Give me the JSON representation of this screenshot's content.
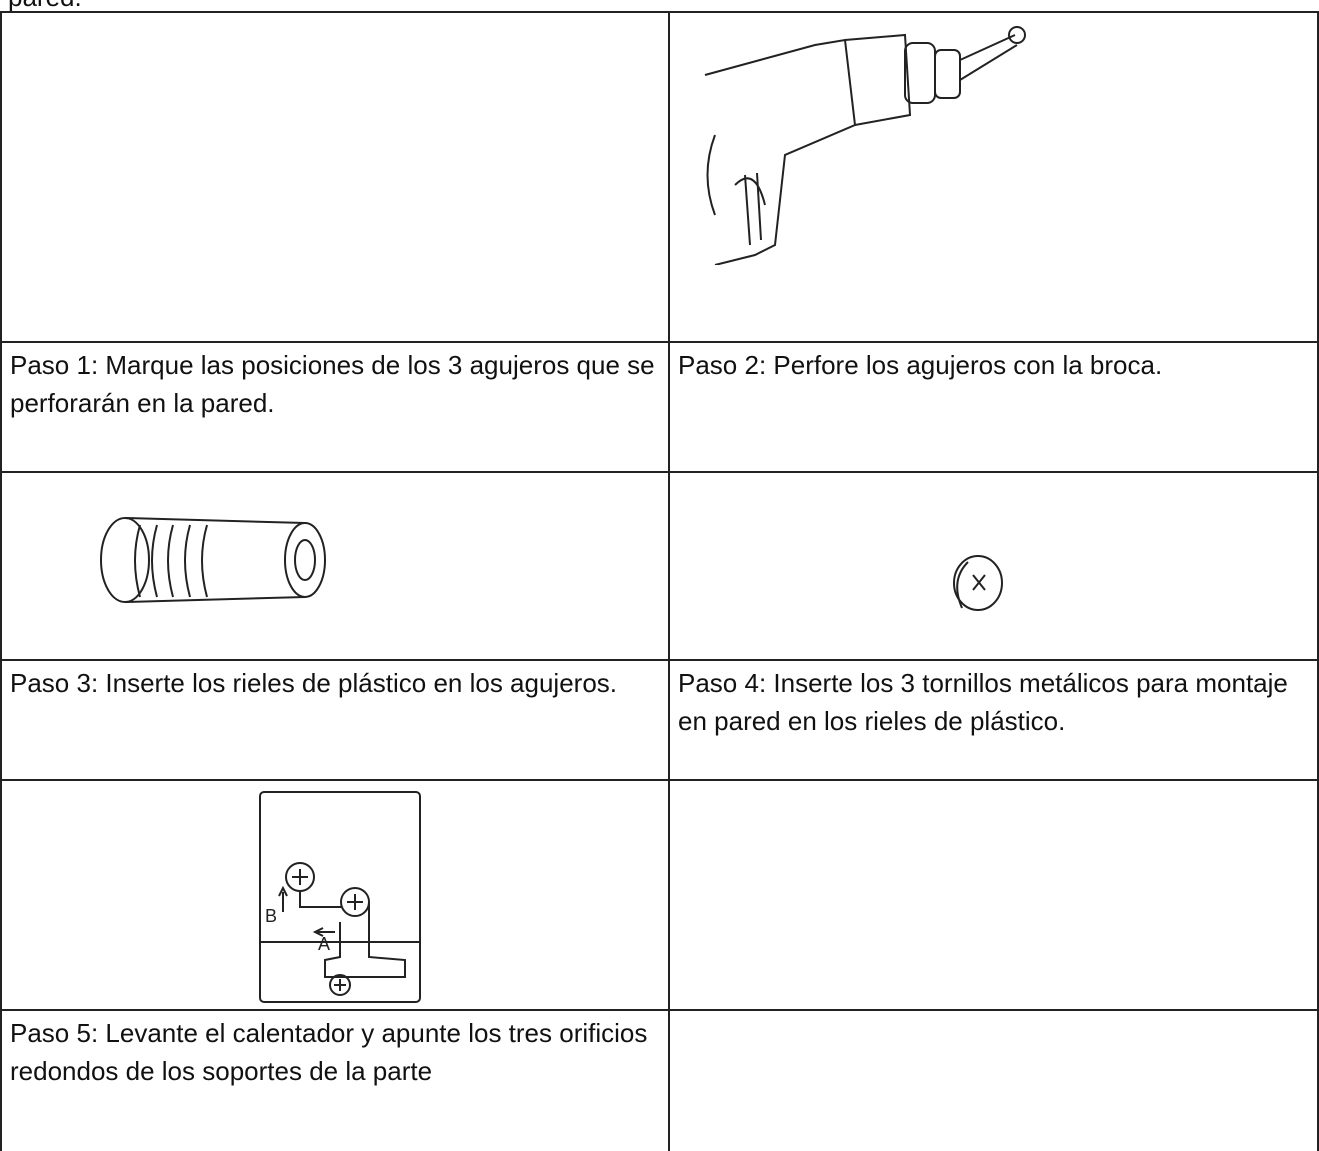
{
  "page_text": {
    "top": "pared."
  },
  "table": {
    "rows": [
      [
        "Paso 1: Marque las posiciones de los 3 agujeros que se perforarán en la pared.",
        "Paso 2: Perfore los agujeros con la broca."
      ],
      [
        "Paso 3: Inserte los rieles de plástico en los agujeros.",
        "Paso 4: Inserte los 3 tornillos metálicos para montaje en pared en los rieles de plástico."
      ],
      [
        "Paso 5: Levante el calentador y apunte los tres orificios redondos de los soportes de la parte"
      ]
    ]
  },
  "figure": {
    "label_a": "A",
    "label_b": "B"
  }
}
